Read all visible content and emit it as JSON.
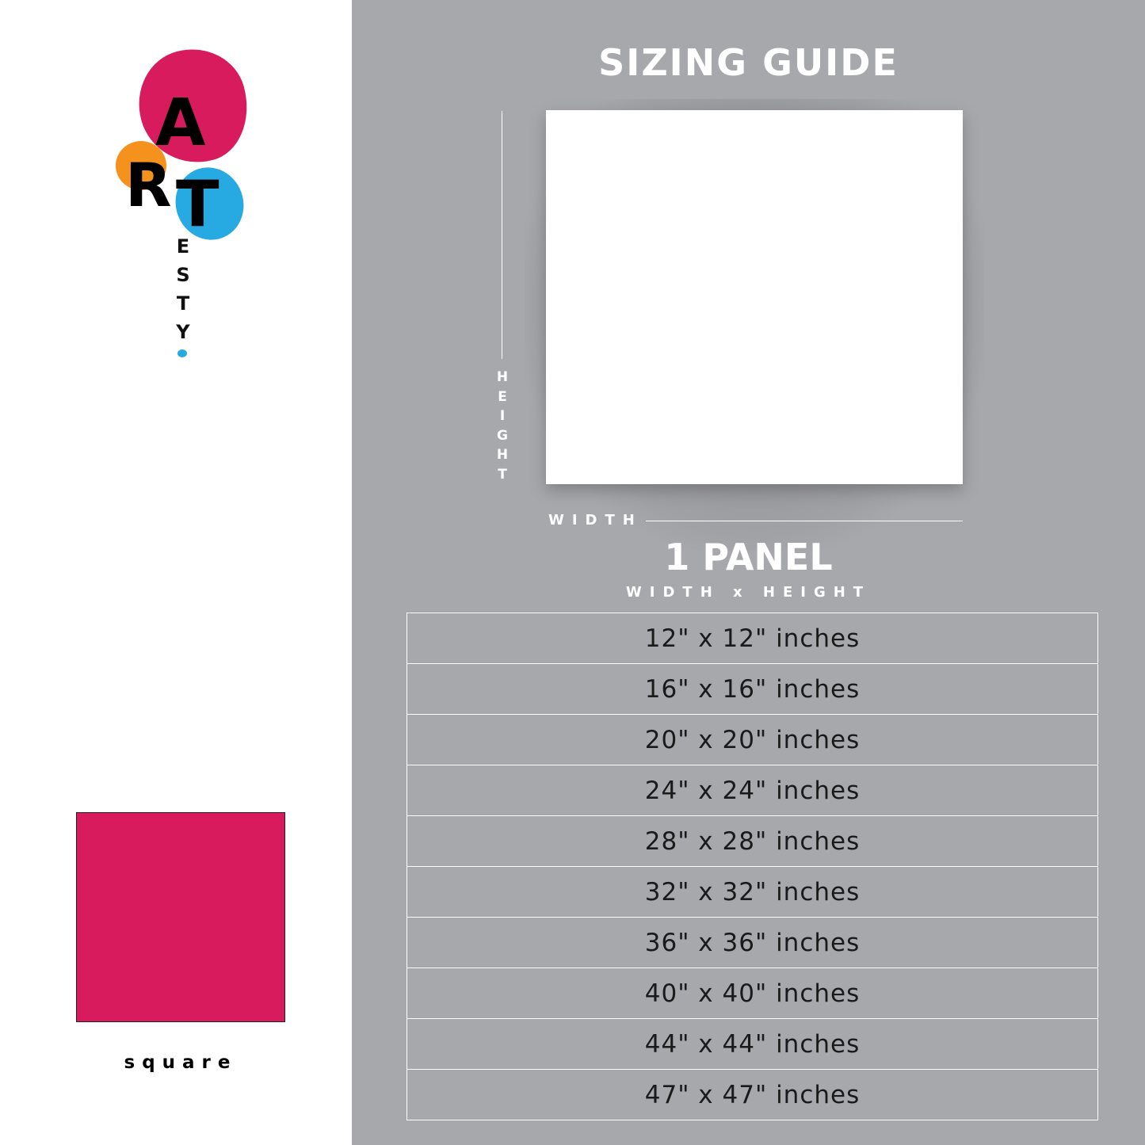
{
  "logo": {
    "letters": [
      "A",
      "R",
      "T"
    ],
    "vertical": [
      "E",
      "S",
      "T",
      "Y"
    ],
    "colors": {
      "pink": "#d81b5c",
      "orange": "#f5921e",
      "blue": "#27a9e1"
    }
  },
  "swatch": {
    "label": "square",
    "color": "#d81b5c"
  },
  "guide": {
    "title": "SIZING GUIDE",
    "height_label": "H\nE\nI\nG\nH\nT",
    "width_label": "WIDTH",
    "panel_title": "1 PANEL",
    "subtitle": "WIDTH x HEIGHT",
    "sizes": [
      "12\" x 12\" inches",
      "16\" x 16\" inches",
      "20\" x 20\" inches",
      "24\" x 24\" inches",
      "28\" x 28\" inches",
      "32\" x 32\" inches",
      "36\" x 36\" inches",
      "40\" x 40\" inches",
      "44\" x 44\" inches",
      "47\" x 47\" inches"
    ]
  }
}
